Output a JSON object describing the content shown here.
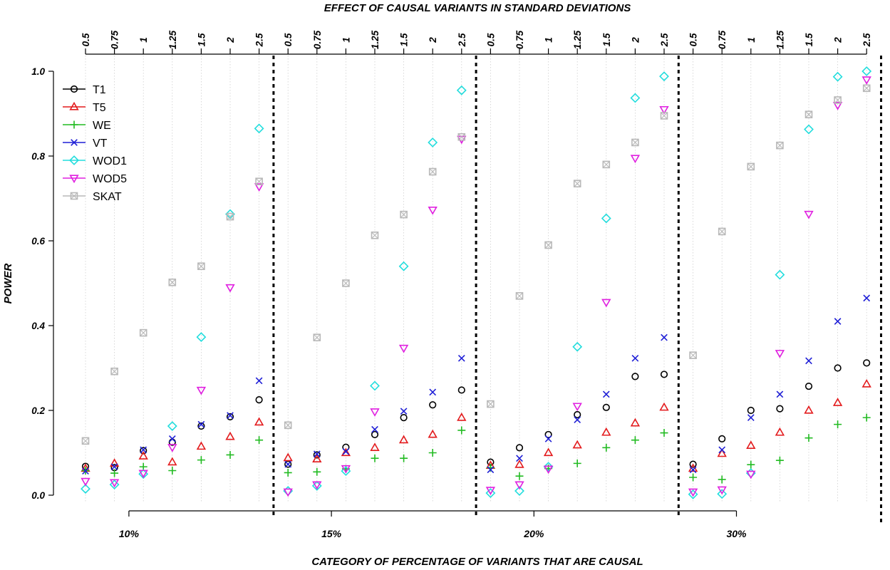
{
  "chart_data": {
    "type": "scatter",
    "title": "",
    "top_axis_label": "EFFECT OF CAUSAL VARIANTS IN STANDARD DEVIATIONS",
    "xlabel": "CATEGORY OF PERCENTAGE OF VARIANTS THAT ARE CAUSAL",
    "ylabel": "POWER",
    "ylim": [
      0.0,
      1.0
    ],
    "yticks": [
      "0.0",
      "0.2",
      "0.4",
      "0.6",
      "0.8",
      "1.0"
    ],
    "effect_sizes": [
      "0.5",
      "0.75",
      "1",
      "1.25",
      "1.5",
      "2",
      "2.5"
    ],
    "categories": [
      "10%",
      "15%",
      "20%",
      "30%"
    ],
    "legend_position": "top-left",
    "grid": "vertical dotted lines at each effect size",
    "series": [
      {
        "name": "T1",
        "color": "#000000",
        "marker": "circle",
        "values": [
          [
            0.068,
            0.065,
            0.105,
            0.125,
            0.163,
            0.185,
            0.225
          ],
          [
            0.073,
            0.095,
            0.113,
            0.143,
            0.183,
            0.213,
            0.248
          ],
          [
            0.078,
            0.112,
            0.143,
            0.19,
            0.207,
            0.28,
            0.285
          ],
          [
            0.073,
            0.133,
            0.2,
            0.204,
            0.257,
            0.3,
            0.312
          ]
        ]
      },
      {
        "name": "T5",
        "color": "#e31a1c",
        "marker": "triangle-up",
        "values": [
          [
            0.063,
            0.075,
            0.092,
            0.078,
            0.115,
            0.138,
            0.172
          ],
          [
            0.088,
            0.085,
            0.1,
            0.112,
            0.13,
            0.143,
            0.183
          ],
          [
            0.07,
            0.072,
            0.1,
            0.118,
            0.148,
            0.17,
            0.207
          ],
          [
            0.063,
            0.098,
            0.117,
            0.148,
            0.2,
            0.218,
            0.262
          ]
        ]
      },
      {
        "name": "WE",
        "color": "#22bb22",
        "marker": "plus",
        "values": [
          [
            0.058,
            0.052,
            0.067,
            0.058,
            0.083,
            0.095,
            0.13
          ],
          [
            0.053,
            0.055,
            0.062,
            0.087,
            0.087,
            0.1,
            0.153
          ],
          [
            0.065,
            0.045,
            0.063,
            0.075,
            0.112,
            0.13,
            0.147
          ],
          [
            0.042,
            0.037,
            0.072,
            0.082,
            0.135,
            0.167,
            0.183
          ]
        ]
      },
      {
        "name": "VT",
        "color": "#1f1fd6",
        "marker": "x",
        "values": [
          [
            0.057,
            0.067,
            0.107,
            0.133,
            0.167,
            0.188,
            0.27
          ],
          [
            0.073,
            0.097,
            0.103,
            0.155,
            0.198,
            0.243,
            0.323
          ],
          [
            0.06,
            0.087,
            0.133,
            0.178,
            0.238,
            0.323,
            0.372
          ],
          [
            0.06,
            0.107,
            0.183,
            0.238,
            0.317,
            0.41,
            0.465
          ]
        ]
      },
      {
        "name": "WOD1",
        "color": "#22dddd",
        "marker": "diamond",
        "values": [
          [
            0.015,
            0.025,
            0.05,
            0.163,
            0.373,
            0.663,
            0.865
          ],
          [
            0.01,
            0.022,
            0.057,
            0.258,
            0.54,
            0.832,
            0.955
          ],
          [
            0.005,
            0.01,
            0.067,
            0.35,
            0.653,
            0.937,
            0.988
          ],
          [
            0.002,
            0.003,
            0.052,
            0.52,
            0.863,
            0.987,
            1.0
          ]
        ]
      },
      {
        "name": "WOD5",
        "color": "#e020e0",
        "marker": "triangle-down",
        "values": [
          [
            0.033,
            0.03,
            0.052,
            0.113,
            0.248,
            0.49,
            0.728
          ],
          [
            0.008,
            0.025,
            0.063,
            0.197,
            0.347,
            0.673,
            0.84
          ],
          [
            0.012,
            0.025,
            0.062,
            0.21,
            0.455,
            0.795,
            0.91
          ],
          [
            0.008,
            0.013,
            0.05,
            0.335,
            0.663,
            0.92,
            0.98
          ]
        ]
      },
      {
        "name": "SKAT",
        "color": "#b8b8b8",
        "marker": "square-x",
        "values": [
          [
            0.128,
            0.292,
            0.383,
            0.502,
            0.54,
            0.657,
            0.74
          ],
          [
            0.165,
            0.372,
            0.5,
            0.613,
            0.662,
            0.763,
            0.845
          ],
          [
            0.215,
            0.47,
            0.59,
            0.735,
            0.78,
            0.832,
            0.895
          ],
          [
            0.33,
            0.622,
            0.775,
            0.825,
            0.898,
            0.932,
            0.96
          ]
        ]
      }
    ]
  }
}
